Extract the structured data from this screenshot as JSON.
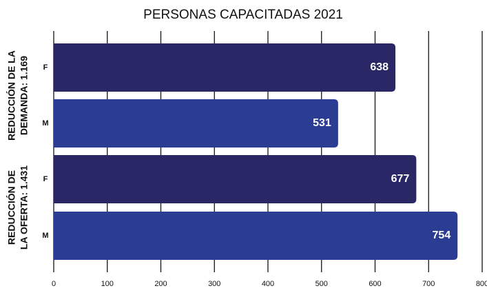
{
  "chart_data": {
    "type": "hbar",
    "title": "PERSONAS CAPACITADAS 2021",
    "groups": [
      {
        "lines": [
          "REDUCCIÓN DE LA",
          "DEMANDA: 1.169"
        ]
      },
      {
        "lines": [
          "REDUCCIÓN DE",
          "LA OFERTA: 1.431"
        ]
      }
    ],
    "categories": [
      "F",
      "M",
      "F",
      "M"
    ],
    "values": [
      638,
      531,
      677,
      754
    ],
    "colors": [
      "#2a2766",
      "#2b3c93",
      "#2a2766",
      "#2b3c93"
    ],
    "xlim": [
      0,
      800
    ],
    "xticks": [
      0,
      100,
      200,
      300,
      400,
      500,
      600,
      700,
      800
    ],
    "grid": true
  }
}
